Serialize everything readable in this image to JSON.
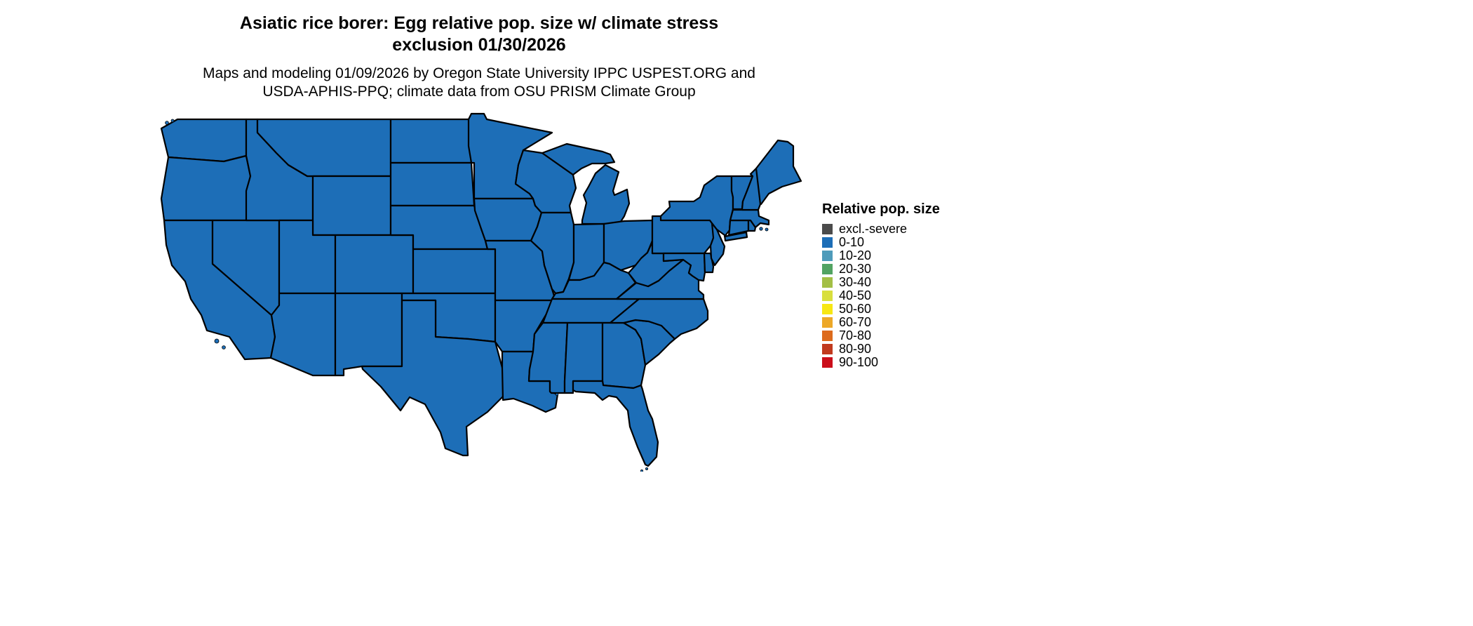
{
  "title": {
    "line1": "Asiatic rice borer: Egg relative pop. size w/ climate stress",
    "line2": "exclusion 01/30/2026"
  },
  "subtitle": {
    "line1": "Maps and modeling 01/09/2026 by Oregon State University IPPC USPEST.ORG and",
    "line2": "USDA-APHIS-PPQ; climate data from OSU PRISM Climate Group"
  },
  "legend": {
    "title": "Relative pop. size",
    "items": [
      {
        "label": "excl.-severe",
        "color": "#4b4b4b"
      },
      {
        "label": "0-10",
        "color": "#1d6eb7"
      },
      {
        "label": "10-20",
        "color": "#4e9bba"
      },
      {
        "label": "20-30",
        "color": "#52a362"
      },
      {
        "label": "30-40",
        "color": "#a3bf45"
      },
      {
        "label": "40-50",
        "color": "#d9df3d"
      },
      {
        "label": "50-60",
        "color": "#f7e713"
      },
      {
        "label": "60-70",
        "color": "#eda827"
      },
      {
        "label": "70-80",
        "color": "#dd6b1d"
      },
      {
        "label": "80-90",
        "color": "#c13a1e"
      },
      {
        "label": "90-100",
        "color": "#cb0e1a"
      }
    ]
  },
  "map": {
    "type": "choropleth",
    "region": "contiguous United States",
    "fill": "#1d6eb7",
    "border": "#000000",
    "all_states_category": "0-10"
  }
}
